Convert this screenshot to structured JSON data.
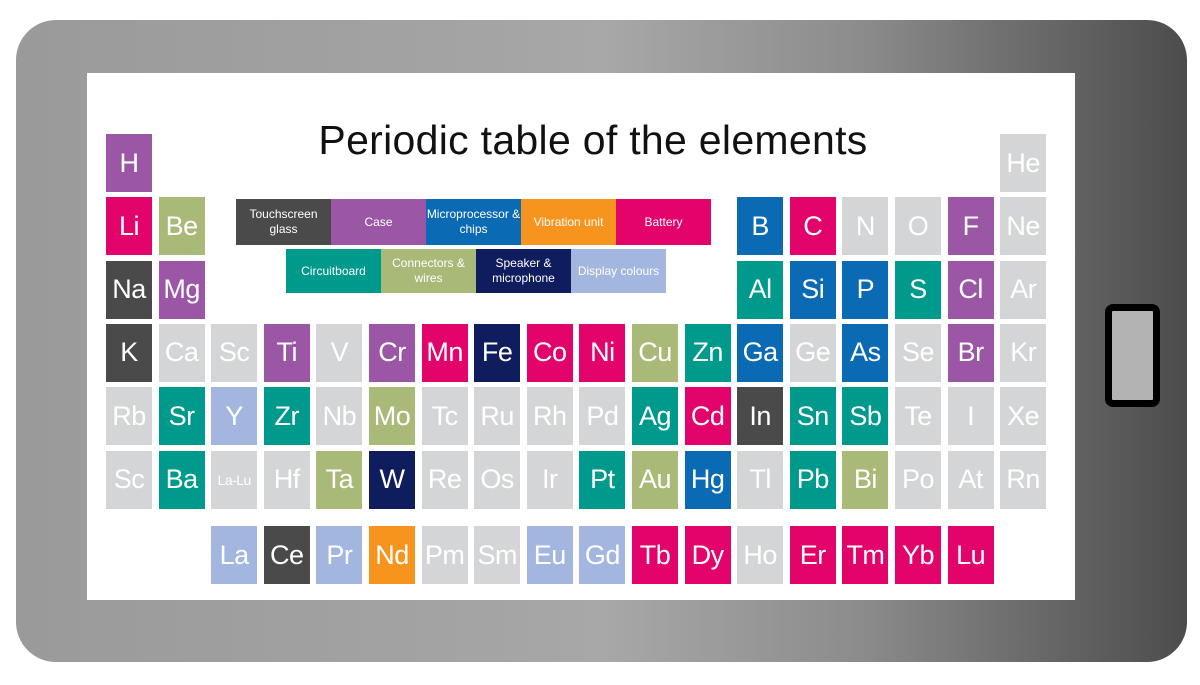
{
  "title": "Periodic table of the elements",
  "colors": {
    "glass": "#4a4a4a",
    "case": "#9b57a5",
    "chip": "#0a6ab4",
    "vibration": "#f7941d",
    "battery": "#e2046a",
    "circuit": "#009a8c",
    "connectors": "#a9b978",
    "speaker": "#0f1c5e",
    "display": "#a3b6e0",
    "none": "#d4d5d6"
  },
  "legend": [
    {
      "key": "glass",
      "label": "Touchscreen glass"
    },
    {
      "key": "case",
      "label": "Case"
    },
    {
      "key": "chip",
      "label": "Microprocessor & chips"
    },
    {
      "key": "vibration",
      "label": "Vibration unit"
    },
    {
      "key": "battery",
      "label": "Battery"
    },
    {
      "key": "circuit",
      "label": "Circuitboard"
    },
    {
      "key": "connectors",
      "label": "Connectors & wires"
    },
    {
      "key": "speaker",
      "label": "Speaker & microphone"
    },
    {
      "key": "display",
      "label": "Display colours"
    }
  ],
  "rows": [
    [
      {
        "s": "H",
        "c": "case"
      },
      null,
      null,
      null,
      null,
      null,
      null,
      null,
      null,
      null,
      null,
      null,
      null,
      null,
      null,
      null,
      null,
      {
        "s": "He",
        "c": "none"
      }
    ],
    [
      {
        "s": "Li",
        "c": "battery"
      },
      {
        "s": "Be",
        "c": "connectors"
      },
      null,
      null,
      null,
      null,
      null,
      null,
      null,
      null,
      null,
      null,
      {
        "s": "B",
        "c": "chip"
      },
      {
        "s": "C",
        "c": "battery"
      },
      {
        "s": "N",
        "c": "none"
      },
      {
        "s": "O",
        "c": "none"
      },
      {
        "s": "F",
        "c": "case"
      },
      {
        "s": "Ne",
        "c": "none"
      }
    ],
    [
      {
        "s": "Na",
        "c": "glass"
      },
      {
        "s": "Mg",
        "c": "case"
      },
      null,
      null,
      null,
      null,
      null,
      null,
      null,
      null,
      null,
      null,
      {
        "s": "Al",
        "c": "circuit"
      },
      {
        "s": "Si",
        "c": "chip"
      },
      {
        "s": "P",
        "c": "chip"
      },
      {
        "s": "S",
        "c": "circuit"
      },
      {
        "s": "Cl",
        "c": "case"
      },
      {
        "s": "Ar",
        "c": "none"
      }
    ],
    [
      {
        "s": "K",
        "c": "glass"
      },
      {
        "s": "Ca",
        "c": "none"
      },
      {
        "s": "Sc",
        "c": "none"
      },
      {
        "s": "Ti",
        "c": "case"
      },
      {
        "s": "V",
        "c": "none"
      },
      {
        "s": "Cr",
        "c": "case"
      },
      {
        "s": "Mn",
        "c": "battery"
      },
      {
        "s": "Fe",
        "c": "speaker"
      },
      {
        "s": "Co",
        "c": "battery"
      },
      {
        "s": "Ni",
        "c": "battery"
      },
      {
        "s": "Cu",
        "c": "connectors"
      },
      {
        "s": "Zn",
        "c": "circuit"
      },
      {
        "s": "Ga",
        "c": "chip"
      },
      {
        "s": "Ge",
        "c": "none"
      },
      {
        "s": "As",
        "c": "chip"
      },
      {
        "s": "Se",
        "c": "none"
      },
      {
        "s": "Br",
        "c": "case"
      },
      {
        "s": "Kr",
        "c": "none"
      }
    ],
    [
      {
        "s": "Rb",
        "c": "none"
      },
      {
        "s": "Sr",
        "c": "circuit"
      },
      {
        "s": "Y",
        "c": "display"
      },
      {
        "s": "Zr",
        "c": "circuit"
      },
      {
        "s": "Nb",
        "c": "none"
      },
      {
        "s": "Mo",
        "c": "connectors"
      },
      {
        "s": "Tc",
        "c": "none"
      },
      {
        "s": "Ru",
        "c": "none"
      },
      {
        "s": "Rh",
        "c": "none"
      },
      {
        "s": "Pd",
        "c": "none"
      },
      {
        "s": "Ag",
        "c": "circuit"
      },
      {
        "s": "Cd",
        "c": "battery"
      },
      {
        "s": "In",
        "c": "glass"
      },
      {
        "s": "Sn",
        "c": "circuit"
      },
      {
        "s": "Sb",
        "c": "circuit"
      },
      {
        "s": "Te",
        "c": "none"
      },
      {
        "s": "I",
        "c": "none"
      },
      {
        "s": "Xe",
        "c": "none"
      }
    ],
    [
      {
        "s": "Sc",
        "c": "none"
      },
      {
        "s": "Ba",
        "c": "circuit"
      },
      {
        "s": "La-Lu",
        "c": "none"
      },
      {
        "s": "Hf",
        "c": "none"
      },
      {
        "s": "Ta",
        "c": "connectors"
      },
      {
        "s": "W",
        "c": "speaker"
      },
      {
        "s": "Re",
        "c": "none"
      },
      {
        "s": "Os",
        "c": "none"
      },
      {
        "s": "Ir",
        "c": "none"
      },
      {
        "s": "Pt",
        "c": "circuit"
      },
      {
        "s": "Au",
        "c": "connectors"
      },
      {
        "s": "Hg",
        "c": "chip"
      },
      {
        "s": "Tl",
        "c": "none"
      },
      {
        "s": "Pb",
        "c": "circuit"
      },
      {
        "s": "Bi",
        "c": "connectors"
      },
      {
        "s": "Po",
        "c": "none"
      },
      {
        "s": "At",
        "c": "none"
      },
      {
        "s": "Rn",
        "c": "none"
      }
    ]
  ],
  "lanthanides": [
    null,
    null,
    {
      "s": "La",
      "c": "display"
    },
    {
      "s": "Ce",
      "c": "glass"
    },
    {
      "s": "Pr",
      "c": "display"
    },
    {
      "s": "Nd",
      "c": "vibration"
    },
    {
      "s": "Pm",
      "c": "none"
    },
    {
      "s": "Sm",
      "c": "none"
    },
    {
      "s": "Eu",
      "c": "display"
    },
    {
      "s": "Gd",
      "c": "display"
    },
    {
      "s": "Tb",
      "c": "battery"
    },
    {
      "s": "Dy",
      "c": "battery"
    },
    {
      "s": "Ho",
      "c": "none"
    },
    {
      "s": "Er",
      "c": "battery"
    },
    {
      "s": "Tm",
      "c": "battery"
    },
    {
      "s": "Yb",
      "c": "battery"
    },
    {
      "s": "Lu",
      "c": "battery"
    }
  ]
}
